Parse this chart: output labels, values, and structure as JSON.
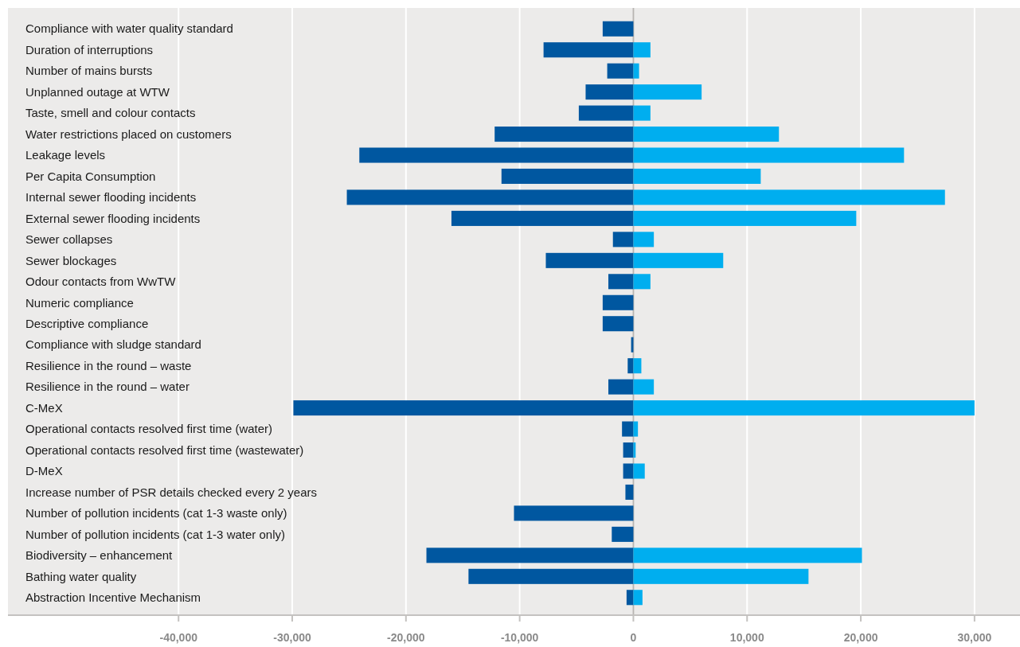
{
  "chart_data": {
    "type": "bar",
    "orientation": "horizontal",
    "stacked": true,
    "categories": [
      "Compliance with water quality standard",
      "Duration of interruptions",
      "Number of mains bursts",
      "Unplanned outage at WTW",
      "Taste, smell and colour contacts",
      "Water restrictions placed on customers",
      "Leakage levels",
      "Per Capita Consumption",
      "Internal sewer flooding incidents",
      "External sewer flooding incidents",
      "Sewer collapses",
      "Sewer blockages",
      "Odour contacts from WwTW",
      "Numeric compliance",
      "Descriptive compliance",
      "Compliance with sludge standard",
      "Resilience in the round – waste",
      "Resilience in the round – water",
      "C-MeX",
      "Operational contacts resolved first time (water)",
      "Operational contacts resolved first time (wastewater)",
      "D-MeX",
      "Increase number of PSR details checked every 2 years",
      "Number of pollution incidents (cat 1-3 waste only)",
      "Number of pollution incidents (cat 1-3 water only)",
      "Biodiversity – enhancement",
      "Bathing water quality",
      "Abstraction Incentive Mechanism"
    ],
    "series": [
      {
        "color": "#0057a0",
        "values": [
          -2700,
          -7900,
          -2300,
          -4200,
          -4800,
          -12200,
          -24100,
          -11600,
          -25200,
          -16000,
          -1800,
          -7700,
          -2200,
          -2700,
          -2700,
          -200,
          -500,
          -2200,
          -29900,
          -1000,
          -900,
          -900,
          -700,
          -10500,
          -1900,
          -18200,
          -14500,
          -600
        ]
      },
      {
        "color": "#00aeef",
        "values": [
          null,
          1500,
          500,
          6000,
          1500,
          12800,
          23800,
          11200,
          27400,
          19600,
          1800,
          7900,
          1500,
          null,
          null,
          null,
          700,
          1800,
          30000,
          400,
          200,
          1000,
          null,
          null,
          null,
          20100,
          15400,
          800
        ]
      }
    ],
    "xlim": [
      -55000,
      34000
    ],
    "xticks": [
      {
        "value": -40000,
        "label": "-40,000"
      },
      {
        "value": -30000,
        "label": "-30,000"
      },
      {
        "value": -20000,
        "label": "-20,000"
      },
      {
        "value": -10000,
        "label": "-10,000"
      },
      0,
      {
        "value": 10000,
        "label": "10,000"
      },
      {
        "value": 20000,
        "label": "20,000"
      },
      {
        "value": 30000,
        "label": "30,000"
      }
    ],
    "grid": "x"
  }
}
